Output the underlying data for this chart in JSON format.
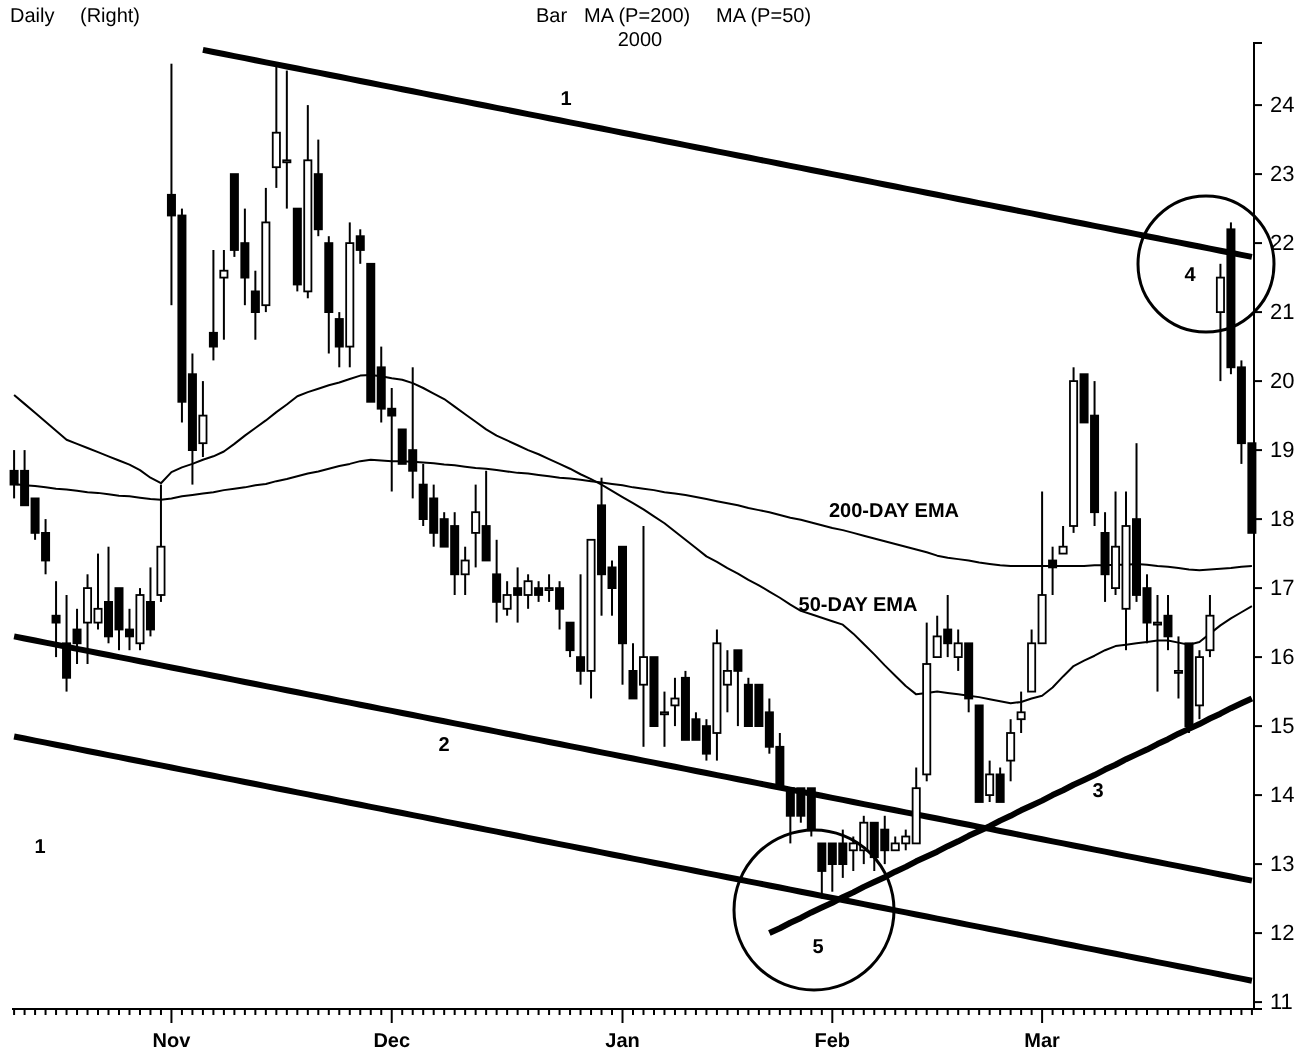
{
  "chart_data": {
    "type": "candlestick",
    "title": "Daily",
    "color": "#000000",
    "annotations": [
      "(Right)",
      "Bar",
      "MA (P=200)",
      "MA (P=50)",
      "2000",
      "200-DAY EMA",
      "50-DAY EMA",
      "1",
      "2",
      "1",
      "3",
      "4",
      "5"
    ],
    "ylim": [
      10.9,
      24.9
    ],
    "yticks": [
      11,
      12,
      13,
      14,
      15,
      16,
      17,
      18,
      19,
      20,
      21,
      22,
      23,
      24
    ],
    "categories": [
      null,
      null,
      null,
      null,
      null,
      null,
      null,
      null,
      null,
      null,
      null,
      null,
      null,
      null,
      null,
      "Nov",
      null,
      null,
      null,
      null,
      null,
      null,
      null,
      null,
      null,
      null,
      null,
      null,
      null,
      null,
      null,
      null,
      null,
      null,
      null,
      null,
      "Dec",
      null,
      null,
      null,
      null,
      null,
      null,
      null,
      null,
      null,
      null,
      null,
      null,
      null,
      null,
      null,
      null,
      null,
      null,
      null,
      null,
      null,
      "Jan",
      null,
      null,
      null,
      null,
      null,
      null,
      null,
      null,
      null,
      null,
      null,
      null,
      null,
      null,
      null,
      null,
      null,
      null,
      null,
      "Feb",
      null,
      null,
      null,
      null,
      null,
      null,
      null,
      null,
      null,
      null,
      null,
      null,
      null,
      null,
      null,
      null,
      null,
      null,
      null,
      "Mar",
      null,
      null,
      null,
      null,
      null,
      null,
      null,
      null,
      null,
      null,
      null,
      null,
      null,
      null,
      null,
      null,
      null,
      null,
      null,
      null
    ],
    "ohlc": [
      [
        18.7,
        19.0,
        18.3,
        18.5
      ],
      [
        18.7,
        19.0,
        18.2,
        18.2
      ],
      [
        18.3,
        18.3,
        17.7,
        17.8
      ],
      [
        17.8,
        18.0,
        17.2,
        17.4
      ],
      [
        16.6,
        17.1,
        16.0,
        16.5
      ],
      [
        16.2,
        16.9,
        15.5,
        15.7
      ],
      [
        16.4,
        16.7,
        15.9,
        16.2
      ],
      [
        16.5,
        17.2,
        15.9,
        17.0
      ],
      [
        16.5,
        17.5,
        16.4,
        16.7
      ],
      [
        16.8,
        17.6,
        16.2,
        16.3
      ],
      [
        17.0,
        17.0,
        16.1,
        16.4
      ],
      [
        16.4,
        16.7,
        16.1,
        16.3
      ],
      [
        16.2,
        17.0,
        16.1,
        16.9
      ],
      [
        16.8,
        17.3,
        16.3,
        16.4
      ],
      [
        16.9,
        18.5,
        16.8,
        17.6
      ],
      [
        22.7,
        24.6,
        21.1,
        22.4
      ],
      [
        22.4,
        22.5,
        19.4,
        19.7
      ],
      [
        20.1,
        20.4,
        18.5,
        19.0
      ],
      [
        19.1,
        20.0,
        18.9,
        19.5
      ],
      [
        20.7,
        21.9,
        20.3,
        20.5
      ],
      [
        21.5,
        21.9,
        20.6,
        21.6
      ],
      [
        23.0,
        23.0,
        21.8,
        21.9
      ],
      [
        22.0,
        22.5,
        21.1,
        21.5
      ],
      [
        21.3,
        21.6,
        20.6,
        21.0
      ],
      [
        21.1,
        22.8,
        21.0,
        22.3
      ],
      [
        23.1,
        24.6,
        22.8,
        23.6
      ],
      [
        23.2,
        24.5,
        22.5,
        23.2
      ],
      [
        22.5,
        22.5,
        21.3,
        21.4
      ],
      [
        21.3,
        24.0,
        21.2,
        23.2
      ],
      [
        23.0,
        23.5,
        22.1,
        22.2
      ],
      [
        22.0,
        22.1,
        20.4,
        21.0
      ],
      [
        20.9,
        21.0,
        20.2,
        20.5
      ],
      [
        20.5,
        22.3,
        20.2,
        22.0
      ],
      [
        22.1,
        22.2,
        21.7,
        21.9
      ],
      [
        21.7,
        21.7,
        19.7,
        19.7
      ],
      [
        20.2,
        20.5,
        19.4,
        19.6
      ],
      [
        19.6,
        19.9,
        18.4,
        19.5
      ],
      [
        19.3,
        19.3,
        18.8,
        18.8
      ],
      [
        19.0,
        20.2,
        18.3,
        18.7
      ],
      [
        18.5,
        18.8,
        17.9,
        18.0
      ],
      [
        18.3,
        18.5,
        17.6,
        17.8
      ],
      [
        18.0,
        18.1,
        17.6,
        17.6
      ],
      [
        17.9,
        18.1,
        16.9,
        17.2
      ],
      [
        17.2,
        17.6,
        16.9,
        17.4
      ],
      [
        17.8,
        18.5,
        17.3,
        18.1
      ],
      [
        17.9,
        18.7,
        17.4,
        17.4
      ],
      [
        17.2,
        17.7,
        16.5,
        16.8
      ],
      [
        16.7,
        17.1,
        16.6,
        16.9
      ],
      [
        17.0,
        17.3,
        16.5,
        16.9
      ],
      [
        16.9,
        17.2,
        16.7,
        17.1
      ],
      [
        17.0,
        17.1,
        16.8,
        16.9
      ],
      [
        17.0,
        17.2,
        16.8,
        17.0
      ],
      [
        17.0,
        17.1,
        16.4,
        16.7
      ],
      [
        16.5,
        16.5,
        16.0,
        16.1
      ],
      [
        16.0,
        17.2,
        15.6,
        15.8
      ],
      [
        15.8,
        17.7,
        15.4,
        17.7
      ],
      [
        18.2,
        18.6,
        16.6,
        17.2
      ],
      [
        17.3,
        17.4,
        16.6,
        17.0
      ],
      [
        17.6,
        17.6,
        15.6,
        16.2
      ],
      [
        15.8,
        16.2,
        15.4,
        15.4
      ],
      [
        15.6,
        17.9,
        14.7,
        16.0
      ],
      [
        16.0,
        16.0,
        15.0,
        15.0
      ],
      [
        15.2,
        15.5,
        14.7,
        15.2
      ],
      [
        15.3,
        15.7,
        15.0,
        15.4
      ],
      [
        15.7,
        15.8,
        14.8,
        14.8
      ],
      [
        15.1,
        15.2,
        14.8,
        14.8
      ],
      [
        15.0,
        15.1,
        14.5,
        14.6
      ],
      [
        14.9,
        16.4,
        14.5,
        16.2
      ],
      [
        15.6,
        16.1,
        15.2,
        15.8
      ],
      [
        16.1,
        16.1,
        15.0,
        15.8
      ],
      [
        15.6,
        15.7,
        15.0,
        15.0
      ],
      [
        15.6,
        15.6,
        15.0,
        15.0
      ],
      [
        15.2,
        15.4,
        14.6,
        14.7
      ],
      [
        14.7,
        14.9,
        14.1,
        14.1
      ],
      [
        14.1,
        14.1,
        13.3,
        13.7
      ],
      [
        14.1,
        14.1,
        13.6,
        13.7
      ],
      [
        14.1,
        14.1,
        13.4,
        13.5
      ],
      [
        13.3,
        13.3,
        12.5,
        12.9
      ],
      [
        13.3,
        13.3,
        12.6,
        13.0
      ],
      [
        13.3,
        13.5,
        12.8,
        13.0
      ],
      [
        13.2,
        13.4,
        12.9,
        13.3
      ],
      [
        13.2,
        13.7,
        13.0,
        13.6
      ],
      [
        13.6,
        13.6,
        12.9,
        13.1
      ],
      [
        13.5,
        13.7,
        13.0,
        13.2
      ],
      [
        13.2,
        13.4,
        13.2,
        13.3
      ],
      [
        13.3,
        13.5,
        13.2,
        13.4
      ],
      [
        13.3,
        14.4,
        13.3,
        14.1
      ],
      [
        14.3,
        16.5,
        14.2,
        15.9
      ],
      [
        16.0,
        16.6,
        16.0,
        16.3
      ],
      [
        16.4,
        16.9,
        16.0,
        16.2
      ],
      [
        16.0,
        16.4,
        15.8,
        16.2
      ],
      [
        16.2,
        16.2,
        15.2,
        15.4
      ],
      [
        15.3,
        15.3,
        13.9,
        13.9
      ],
      [
        14.0,
        14.5,
        13.9,
        14.3
      ],
      [
        14.3,
        14.4,
        13.9,
        13.9
      ],
      [
        14.5,
        15.1,
        14.2,
        14.9
      ],
      [
        15.1,
        15.5,
        14.9,
        15.2
      ],
      [
        15.5,
        16.4,
        15.5,
        16.2
      ],
      [
        16.2,
        18.4,
        16.2,
        16.9
      ],
      [
        17.4,
        17.6,
        16.9,
        17.3
      ],
      [
        17.5,
        17.9,
        17.5,
        17.6
      ],
      [
        17.9,
        20.2,
        17.8,
        20.0
      ],
      [
        20.1,
        20.1,
        19.4,
        19.4
      ],
      [
        19.5,
        20.0,
        17.9,
        18.1
      ],
      [
        17.8,
        18.1,
        16.8,
        17.2
      ],
      [
        17.0,
        18.4,
        16.9,
        17.6
      ],
      [
        16.7,
        18.4,
        16.1,
        17.9
      ],
      [
        18.0,
        19.1,
        16.8,
        16.9
      ],
      [
        17.0,
        17.2,
        16.2,
        16.5
      ],
      [
        16.5,
        16.9,
        15.5,
        16.5
      ],
      [
        16.6,
        16.9,
        16.1,
        16.3
      ],
      [
        15.8,
        16.3,
        15.4,
        15.8
      ],
      [
        16.2,
        16.2,
        14.9,
        15.0
      ],
      [
        15.3,
        16.1,
        15.1,
        16.0
      ],
      [
        16.1,
        16.9,
        16.0,
        16.6
      ],
      [
        21.0,
        21.7,
        20.0,
        21.5
      ],
      [
        22.2,
        22.3,
        20.1,
        20.2
      ],
      [
        20.2,
        20.3,
        18.8,
        19.1
      ],
      [
        19.1,
        19.1,
        17.8,
        17.8
      ]
    ],
    "series": [
      {
        "type": "line",
        "color": "#000000",
        "values": [
          19.8,
          19.67,
          19.54,
          19.41,
          19.28,
          19.15,
          19.09,
          19.03,
          18.97,
          18.91,
          18.85,
          18.79,
          18.71,
          18.6,
          18.52,
          18.68,
          18.75,
          18.8,
          18.86,
          18.91,
          18.98,
          19.09,
          19.21,
          19.32,
          19.43,
          19.55,
          19.66,
          19.78,
          19.84,
          19.89,
          19.94,
          19.98,
          20.03,
          20.08,
          20.09,
          20.07,
          20.04,
          20.02,
          19.97,
          19.9,
          19.82,
          19.74,
          19.63,
          19.52,
          19.41,
          19.3,
          19.21,
          19.14,
          19.07,
          19.0,
          18.94,
          18.87,
          18.8,
          18.73,
          18.65,
          18.58,
          18.5,
          18.41,
          18.32,
          18.23,
          18.14,
          18.04,
          17.94,
          17.82,
          17.7,
          17.58,
          17.46,
          17.38,
          17.29,
          17.21,
          17.12,
          17.04,
          16.95,
          16.86,
          16.76,
          16.67,
          16.62,
          16.57,
          16.52,
          16.47,
          16.34,
          16.19,
          16.04,
          15.88,
          15.73,
          15.58,
          15.46,
          15.48,
          15.5,
          15.48,
          15.46,
          15.44,
          15.42,
          15.39,
          15.36,
          15.33,
          15.35,
          15.4,
          15.44,
          15.56,
          15.72,
          15.87,
          15.95,
          16.02,
          16.1,
          16.16,
          16.18,
          16.2,
          16.22,
          16.24,
          16.24,
          16.21,
          16.18,
          16.22,
          16.34,
          16.46,
          16.56,
          16.65,
          16.74
        ]
      },
      {
        "type": "line",
        "color": "#000000",
        "values": [
          18.51,
          18.49,
          18.48,
          18.46,
          18.44,
          18.43,
          18.41,
          18.39,
          18.38,
          18.36,
          18.34,
          18.33,
          18.31,
          18.29,
          18.28,
          18.3,
          18.33,
          18.35,
          18.37,
          18.39,
          18.42,
          18.44,
          18.46,
          18.49,
          18.51,
          18.55,
          18.58,
          18.62,
          18.66,
          18.69,
          18.73,
          18.77,
          18.8,
          18.84,
          18.86,
          18.85,
          18.84,
          18.84,
          18.83,
          18.82,
          18.81,
          18.79,
          18.78,
          18.76,
          18.74,
          18.73,
          18.71,
          18.69,
          18.67,
          18.66,
          18.64,
          18.62,
          18.6,
          18.59,
          18.57,
          18.55,
          18.53,
          18.51,
          18.49,
          18.46,
          18.44,
          18.42,
          18.39,
          18.37,
          18.35,
          18.32,
          18.29,
          18.26,
          18.23,
          18.2,
          18.16,
          18.13,
          18.1,
          18.06,
          18.02,
          17.99,
          17.95,
          17.91,
          17.87,
          17.84,
          17.8,
          17.76,
          17.72,
          17.68,
          17.64,
          17.6,
          17.56,
          17.52,
          17.47,
          17.44,
          17.42,
          17.4,
          17.37,
          17.35,
          17.33,
          17.32,
          17.32,
          17.32,
          17.32,
          17.32,
          17.32,
          17.32,
          17.32,
          17.33,
          17.33,
          17.34,
          17.34,
          17.35,
          17.34,
          17.32,
          17.31,
          17.29,
          17.27,
          17.26,
          17.27,
          17.28,
          17.29,
          17.31,
          17.32
        ]
      },
      {
        "type": "line",
        "color": "#000000",
        "values": [
          null,
          null,
          null,
          null,
          null,
          null,
          null,
          null,
          null,
          null,
          null,
          null,
          null,
          null,
          null,
          null,
          null,
          null,
          24.8,
          24.77,
          24.74,
          24.71,
          24.68,
          24.65,
          24.62,
          24.59,
          24.56,
          24.53,
          24.5,
          24.47,
          24.44,
          24.41,
          24.38,
          24.35,
          24.32,
          24.29,
          24.26,
          24.23,
          24.2,
          24.17,
          24.14,
          24.11,
          24.08,
          24.05,
          24.02,
          23.99,
          23.96,
          23.93,
          23.9,
          23.87,
          23.84,
          23.81,
          23.78,
          23.75,
          23.72,
          23.69,
          23.66,
          23.63,
          23.6,
          23.57,
          23.54,
          23.51,
          23.48,
          23.45,
          23.42,
          23.39,
          23.36,
          23.33,
          23.3,
          23.27,
          23.24,
          23.21,
          23.18,
          23.15,
          23.12,
          23.09,
          23.06,
          23.03,
          23.0,
          22.97,
          22.94,
          22.91,
          22.88,
          22.85,
          22.82,
          22.79,
          22.76,
          22.73,
          22.7,
          22.67,
          22.64,
          22.61,
          22.58,
          22.55,
          22.52,
          22.49,
          22.46,
          22.43,
          22.4,
          22.37,
          22.34,
          22.31,
          22.28,
          22.25,
          22.22,
          22.19,
          22.16,
          22.13,
          22.1,
          22.07,
          22.04,
          22.01,
          21.98,
          21.95,
          21.92,
          21.89,
          21.86,
          21.83,
          21.8
        ]
      },
      {
        "type": "line",
        "color": "#000000",
        "values": [
          16.3,
          16.27,
          16.24,
          16.21,
          16.18,
          16.15,
          16.12,
          16.09,
          16.06,
          16.03,
          16.0,
          15.97,
          15.94,
          15.91,
          15.88,
          15.85,
          15.82,
          15.79,
          15.76,
          15.73,
          15.7,
          15.67,
          15.64,
          15.61,
          15.58,
          15.55,
          15.52,
          15.49,
          15.46,
          15.43,
          15.4,
          15.37,
          15.34,
          15.31,
          15.28,
          15.25,
          15.22,
          15.19,
          15.16,
          15.13,
          15.1,
          15.07,
          15.04,
          15.01,
          14.98,
          14.95,
          14.92,
          14.89,
          14.86,
          14.83,
          14.8,
          14.77,
          14.74,
          14.71,
          14.68,
          14.65,
          14.62,
          14.59,
          14.56,
          14.53,
          14.5,
          14.47,
          14.44,
          14.41,
          14.38,
          14.35,
          14.32,
          14.29,
          14.26,
          14.23,
          14.2,
          14.17,
          14.14,
          14.11,
          14.08,
          14.05,
          14.02,
          13.99,
          13.96,
          13.93,
          13.9,
          13.87,
          13.84,
          13.81,
          13.78,
          13.75,
          13.72,
          13.69,
          13.66,
          13.63,
          13.6,
          13.57,
          13.54,
          13.51,
          13.48,
          13.45,
          13.42,
          13.39,
          13.36,
          13.33,
          13.3,
          13.27,
          13.24,
          13.21,
          13.18,
          13.15,
          13.12,
          13.09,
          13.06,
          13.03,
          13.0,
          12.97,
          12.94,
          12.91,
          12.88,
          12.85,
          12.82,
          12.79,
          12.76
        ]
      },
      {
        "type": "line",
        "color": "#000000",
        "values": [
          14.85,
          14.82,
          14.79,
          14.76,
          14.73,
          14.7,
          14.67,
          14.64,
          14.61,
          14.58,
          14.55,
          14.52,
          14.49,
          14.46,
          14.43,
          14.4,
          14.37,
          14.34,
          14.31,
          14.28,
          14.25,
          14.22,
          14.19,
          14.16,
          14.13,
          14.1,
          14.07,
          14.04,
          14.01,
          13.98,
          13.95,
          13.92,
          13.89,
          13.86,
          13.83,
          13.8,
          13.77,
          13.74,
          13.71,
          13.68,
          13.65,
          13.62,
          13.59,
          13.56,
          13.53,
          13.5,
          13.47,
          13.44,
          13.41,
          13.38,
          13.35,
          13.32,
          13.29,
          13.26,
          13.23,
          13.2,
          13.17,
          13.14,
          13.11,
          13.08,
          13.05,
          13.02,
          12.99,
          12.96,
          12.93,
          12.9,
          12.87,
          12.84,
          12.81,
          12.78,
          12.75,
          12.72,
          12.69,
          12.66,
          12.63,
          12.6,
          12.57,
          12.54,
          12.51,
          12.48,
          12.45,
          12.42,
          12.39,
          12.36,
          12.33,
          12.3,
          12.27,
          12.24,
          12.21,
          12.18,
          12.15,
          12.12,
          12.09,
          12.06,
          12.03,
          12.0,
          11.97,
          11.94,
          11.91,
          11.88,
          11.85,
          11.82,
          11.79,
          11.76,
          11.73,
          11.7,
          11.67,
          11.64,
          11.61,
          11.58,
          11.55,
          11.52,
          11.49,
          11.46,
          11.43,
          11.4,
          11.37,
          11.34,
          11.31
        ]
      },
      {
        "type": "line",
        "color": "#000000",
        "values": [
          null,
          null,
          null,
          null,
          null,
          null,
          null,
          null,
          null,
          null,
          null,
          null,
          null,
          null,
          null,
          null,
          null,
          null,
          null,
          null,
          null,
          null,
          null,
          null,
          null,
          null,
          null,
          null,
          null,
          null,
          null,
          null,
          null,
          null,
          null,
          null,
          null,
          null,
          null,
          null,
          null,
          null,
          null,
          null,
          null,
          null,
          null,
          null,
          null,
          null,
          null,
          null,
          null,
          null,
          null,
          null,
          null,
          null,
          null,
          null,
          null,
          null,
          null,
          null,
          null,
          null,
          null,
          null,
          null,
          null,
          null,
          null,
          12.0,
          12.07,
          12.15,
          12.22,
          12.3,
          12.37,
          12.44,
          12.52,
          12.59,
          12.67,
          12.74,
          12.81,
          12.89,
          12.96,
          13.04,
          13.11,
          13.18,
          13.26,
          13.33,
          13.41,
          13.48,
          13.55,
          13.63,
          13.7,
          13.78,
          13.85,
          13.92,
          14.0,
          14.07,
          14.15,
          14.22,
          14.29,
          14.37,
          14.44,
          14.52,
          14.59,
          14.66,
          14.74,
          14.81,
          14.89,
          14.96,
          15.03,
          15.11,
          15.18,
          15.26,
          15.33,
          15.4
        ]
      }
    ]
  }
}
